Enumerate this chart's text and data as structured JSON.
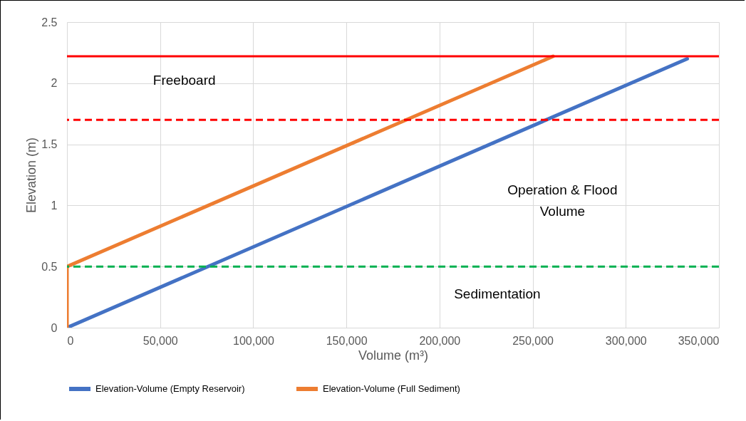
{
  "chart_data": {
    "type": "line",
    "xlabel": "Volume (m³)",
    "ylabel": "Elevation (m)",
    "xlim": [
      0,
      350000
    ],
    "xticks": [
      0,
      {
        "value": 50000,
        "label": "50,000"
      },
      {
        "value": 100000,
        "label": "100,000"
      },
      {
        "value": 150000,
        "label": "150,000"
      },
      {
        "value": 200000,
        "label": "200,000"
      },
      {
        "value": 250000,
        "label": "250,000"
      },
      {
        "value": 300000,
        "label": "300,000"
      },
      {
        "value": 350000,
        "label": "350,000"
      }
    ],
    "ylim": [
      0,
      2.5
    ],
    "yticks": [
      0,
      0.5,
      1,
      1.5,
      2,
      2.5
    ],
    "grid": true,
    "legend": "bottom",
    "marker": "none",
    "line_style": "solid",
    "series": [
      {
        "name": "Elevation-Volume (Empty Reservoir)",
        "color": "#4472c4",
        "x": [
          0,
          333000
        ],
        "values": [
          0,
          2.2
        ]
      },
      {
        "name": "Elevation-Volume (Full Sediment)",
        "color": "#ed7d31",
        "x": [
          0,
          0,
          261000
        ],
        "values": [
          0,
          0.5,
          2.22
        ]
      }
    ],
    "ref_lines": [
      {
        "axis": "y",
        "value": 2.22,
        "color": "#ff0000",
        "line_style": "solid"
      },
      {
        "axis": "y",
        "value": 1.7,
        "color": "#ff0000",
        "line_style": "dashed"
      },
      {
        "axis": "y",
        "value": 0.5,
        "color": "#00b050",
        "line_style": "dashed"
      }
    ],
    "annotations": [
      "Freeboard",
      "Operation & Flood Volume",
      "Sedimentation"
    ]
  }
}
